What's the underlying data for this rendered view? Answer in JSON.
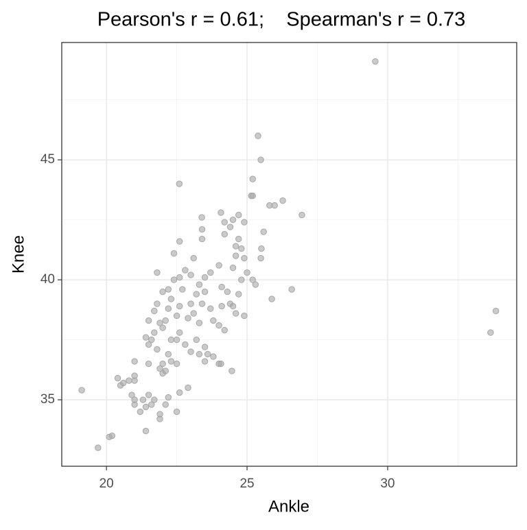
{
  "chart_data": {
    "type": "scatter",
    "title": "Pearson's r = 0.61;    Spearman's r = 0.73",
    "x_label": "Ankle",
    "y_label": "Knee",
    "color": "#a6a6a6",
    "xlim": [
      18.41,
      34.59
    ],
    "ylim": [
      32.23,
      49.89
    ],
    "xticks": [
      20,
      25,
      30
    ],
    "yticks": [
      35,
      40,
      45
    ],
    "xminor": [
      22.5,
      27.5,
      32.5
    ],
    "yminor": [
      37.5,
      42.5,
      47.5
    ],
    "grid": true,
    "x": [
      19.12,
      19.7,
      20.1,
      20.2,
      29.56,
      33.85,
      33.66,
      25.39,
      25.49,
      22.59,
      25.2,
      25.15,
      26.95,
      26.27,
      25.98,
      25.8,
      24.07,
      23.39,
      25.59,
      25.51,
      25.49,
      25.88,
      26.59,
      24.9,
      24.46,
      24.07,
      20.4,
      20.5,
      20.6,
      20.8,
      21.0,
      21.0,
      20.9,
      21.0,
      21.0,
      21.2,
      21.3,
      21.4,
      21.5,
      21.4,
      21.6,
      21.7,
      21.9,
      21.9,
      22.1,
      22.2,
      22.5,
      22.6,
      22.9,
      21.0,
      21.5,
      21.6,
      21.4,
      21.5,
      21.7,
      21.8,
      21.9,
      22.0,
      22.1,
      22.2,
      22.3,
      22.5,
      22.5,
      22.6,
      22.8,
      23.0,
      23.2,
      23.3,
      23.5,
      23.6,
      23.8,
      21.5,
      21.7,
      21.8,
      21.9,
      22.0,
      22.1,
      22.2,
      22.3,
      22.5,
      22.6,
      22.7,
      22.9,
      23.0,
      23.1,
      23.2,
      23.3,
      23.4,
      23.5,
      23.7,
      23.8,
      24.0,
      24.1,
      24.2,
      21.8,
      22.0,
      22.2,
      22.4,
      22.6,
      22.8,
      23.0,
      23.1,
      23.3,
      23.5,
      23.7,
      23.4,
      23.4,
      22.6,
      22.4,
      24.0,
      24.1,
      24.3,
      24.4,
      24.5,
      24.6,
      24.7,
      24.8,
      24.5,
      24.6,
      24.6,
      24.7,
      24.8,
      24.9,
      25.0,
      25.2,
      25.3,
      24.2,
      24.4,
      24.5,
      24.7,
      24.9,
      24.2,
      25.2,
      22.0,
      22.3,
      23.5,
      24.0
    ],
    "y": [
      35.4,
      33.0,
      33.45,
      33.5,
      49.1,
      38.7,
      37.8,
      46.0,
      45.0,
      44.0,
      44.2,
      43.5,
      42.7,
      43.3,
      43.1,
      43.1,
      42.8,
      42.6,
      42.0,
      41.3,
      40.9,
      39.2,
      39.6,
      38.5,
      36.2,
      36.5,
      35.9,
      35.6,
      35.7,
      35.8,
      36.0,
      35.8,
      35.2,
      34.8,
      35.0,
      34.5,
      35.0,
      34.7,
      35.2,
      33.7,
      34.8,
      35.0,
      34.2,
      34.4,
      34.8,
      35.1,
      34.5,
      35.3,
      35.5,
      36.6,
      36.5,
      37.5,
      37.6,
      37.3,
      37.8,
      37.1,
      36.3,
      36.5,
      36.2,
      36.9,
      37.5,
      36.5,
      37.5,
      37.8,
      37.3,
      37.0,
      37.5,
      36.9,
      37.2,
      36.9,
      36.8,
      38.3,
      38.7,
      39.0,
      38.2,
      38.0,
      38.3,
      38.8,
      39.2,
      38.5,
      38.9,
      39.6,
      38.4,
      39.0,
      38.6,
      39.4,
      38.2,
      39.0,
      39.5,
      38.8,
      38.3,
      38.1,
      38.9,
      37.9,
      40.3,
      39.5,
      39.6,
      40.0,
      40.1,
      40.4,
      40.2,
      40.9,
      39.8,
      40.1,
      40.3,
      41.7,
      42.1,
      41.6,
      41.1,
      40.6,
      39.7,
      39.5,
      39.0,
      38.9,
      38.6,
      39.4,
      40.0,
      40.5,
      41.0,
      41.4,
      41.7,
      41.3,
      40.9,
      40.3,
      40.0,
      39.8,
      41.9,
      42.2,
      42.5,
      42.7,
      42.4,
      42.4,
      43.5,
      36.1,
      36.6,
      36.6,
      36.5
    ]
  }
}
